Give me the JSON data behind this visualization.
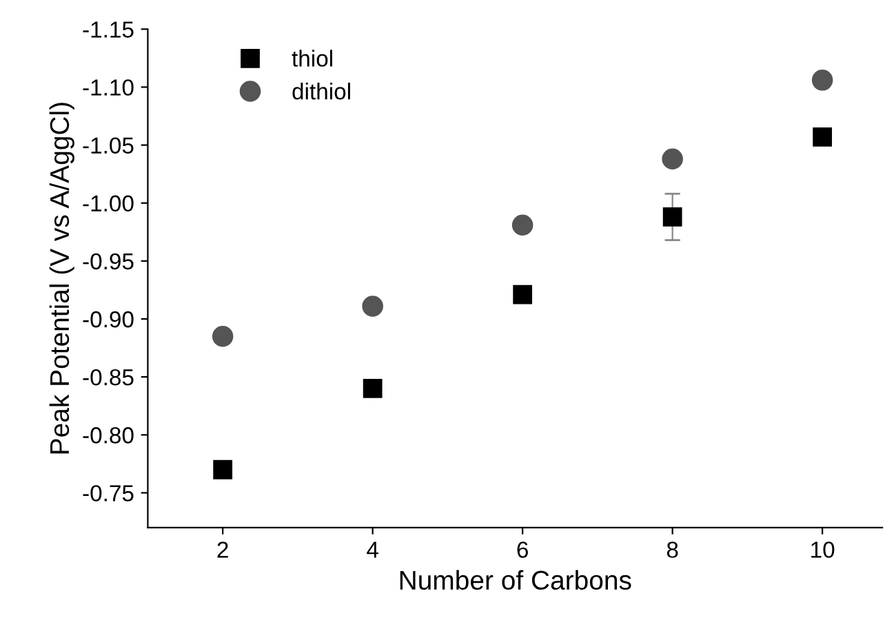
{
  "chart_data": {
    "type": "scatter",
    "xlabel": "Number of Carbons",
    "ylabel": "Peak Potential (V vs A/AggCl)",
    "x": [
      2,
      4,
      6,
      8,
      10
    ],
    "series": [
      {
        "name": "thiol",
        "color": "#000000",
        "marker": "square",
        "values": [
          -0.77,
          -0.84,
          -0.921,
          -0.988,
          -1.057
        ],
        "errors": [
          null,
          null,
          null,
          0.02,
          null
        ]
      },
      {
        "name": "dithiol",
        "color": "#555555",
        "marker": "circle",
        "values": [
          -0.885,
          -0.911,
          -0.981,
          -1.038,
          -1.106
        ]
      }
    ],
    "xlim": [
      1,
      10.8
    ],
    "xticks": [
      2,
      4,
      6,
      8,
      10
    ],
    "ylim": [
      -0.72,
      -1.15
    ],
    "yticks": [
      {
        "value": -0.75,
        "label": "-0.75"
      },
      {
        "value": -0.8,
        "label": "-0.80"
      },
      {
        "value": -0.85,
        "label": "-0.85"
      },
      {
        "value": -0.9,
        "label": "-0.90"
      },
      {
        "value": -0.95,
        "label": "-0.95"
      },
      {
        "value": -1.0,
        "label": "-1.00"
      },
      {
        "value": -1.05,
        "label": "-1.05"
      },
      {
        "value": -1.1,
        "label": "-1.10"
      },
      {
        "value": -1.15,
        "label": "-1.15"
      }
    ],
    "grid": false,
    "legend": "top left"
  }
}
